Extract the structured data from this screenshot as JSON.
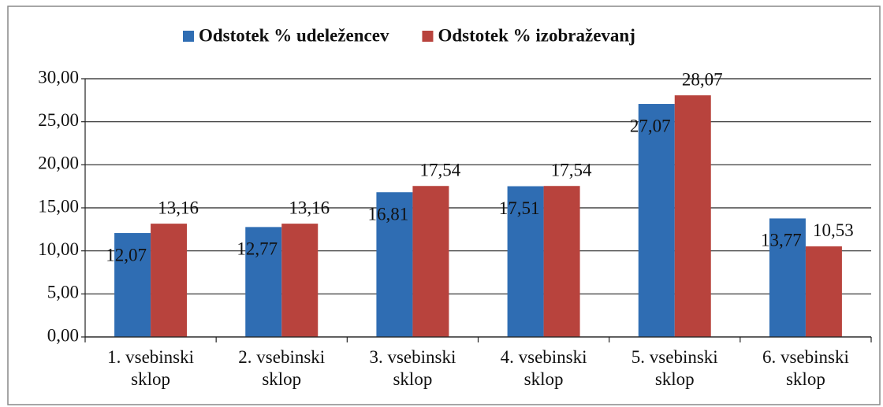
{
  "chart_data": {
    "type": "bar",
    "categories": [
      "1. vsebinski sklop",
      "2. vsebinski sklop",
      "3. vsebinski sklop",
      "4. vsebinski sklop",
      "5. vsebinski sklop",
      "6. vsebinski sklop"
    ],
    "series": [
      {
        "name": "Odstotek % udeležencev",
        "color": "#2f6db3",
        "values": [
          12.07,
          12.77,
          16.81,
          17.51,
          27.07,
          13.77
        ],
        "value_labels": [
          "12,07",
          "12,77",
          "16,81",
          "17,51",
          "27,07",
          "13,77"
        ]
      },
      {
        "name": "Odstotek % izobraževanj",
        "color": "#b8433d",
        "values": [
          13.16,
          13.16,
          17.54,
          17.54,
          28.07,
          10.53
        ],
        "value_labels": [
          "13,16",
          "13,16",
          "17,54",
          "17,54",
          "28,07",
          "10,53"
        ]
      }
    ],
    "ylim": [
      0,
      30
    ],
    "yticks": [
      {
        "value": 0,
        "label": "0,00"
      },
      {
        "value": 5,
        "label": "5,00"
      },
      {
        "value": 10,
        "label": "10,00"
      },
      {
        "value": 15,
        "label": "15,00"
      },
      {
        "value": 20,
        "label": "20,00"
      },
      {
        "value": 25,
        "label": "25,00"
      },
      {
        "value": 30,
        "label": "30,00"
      }
    ],
    "grid": true,
    "legend": "top"
  }
}
